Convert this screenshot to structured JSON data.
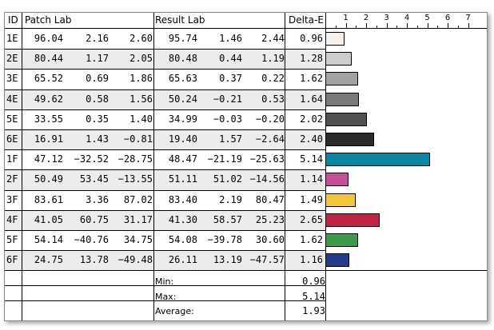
{
  "headers": {
    "id": "ID",
    "patch_lab": "Patch Lab",
    "result_lab": "Result Lab",
    "delta_e": "Delta-E"
  },
  "axis_ticks": [
    "1",
    "2",
    "3",
    "4",
    "5",
    "6",
    "7"
  ],
  "rows": [
    {
      "id": "1E",
      "pL": "96.04",
      "pa": "2.16",
      "pb": "2.60",
      "rL": "95.74",
      "ra": "1.46",
      "rb": "2.44",
      "de": "0.96",
      "color": "#f8f0ea"
    },
    {
      "id": "2E",
      "pL": "80.44",
      "pa": "1.17",
      "pb": "2.05",
      "rL": "80.48",
      "ra": "0.44",
      "rb": "1.19",
      "de": "1.28",
      "color": "#cdcdcd"
    },
    {
      "id": "3E",
      "pL": "65.52",
      "pa": "0.69",
      "pb": "1.86",
      "rL": "65.63",
      "ra": "0.37",
      "rb": "0.22",
      "de": "1.62",
      "color": "#a2a2a2"
    },
    {
      "id": "4E",
      "pL": "49.62",
      "pa": "0.58",
      "pb": "1.56",
      "rL": "50.24",
      "ra": "−0.21",
      "rb": "0.53",
      "de": "1.64",
      "color": "#7a7a7a"
    },
    {
      "id": "5E",
      "pL": "33.55",
      "pa": "0.35",
      "pb": "1.40",
      "rL": "34.99",
      "ra": "−0.03",
      "rb": "−0.20",
      "de": "2.02",
      "color": "#505050"
    },
    {
      "id": "6E",
      "pL": "16.91",
      "pa": "1.43",
      "pb": "−0.81",
      "rL": "19.40",
      "ra": "1.57",
      "rb": "−2.64",
      "de": "2.40",
      "color": "#2b2b2d"
    },
    {
      "id": "1F",
      "pL": "47.12",
      "pa": "−32.52",
      "pb": "−28.75",
      "rL": "48.47",
      "ra": "−21.19",
      "rb": "−25.63",
      "de": "5.14",
      "color": "#0a86a3"
    },
    {
      "id": "2F",
      "pL": "50.49",
      "pa": "53.45",
      "pb": "−13.55",
      "rL": "51.11",
      "ra": "51.02",
      "rb": "−14.56",
      "de": "1.14",
      "color": "#c64f96"
    },
    {
      "id": "3F",
      "pL": "83.61",
      "pa": "3.36",
      "pb": "87.02",
      "rL": "83.40",
      "ra": "2.19",
      "rb": "80.47",
      "de": "1.49",
      "color": "#f2c73a"
    },
    {
      "id": "4F",
      "pL": "41.05",
      "pa": "60.75",
      "pb": "31.17",
      "rL": "41.30",
      "ra": "58.57",
      "rb": "25.23",
      "de": "2.65",
      "color": "#c02444"
    },
    {
      "id": "5F",
      "pL": "54.14",
      "pa": "−40.76",
      "pb": "34.75",
      "rL": "54.08",
      "ra": "−39.78",
      "rb": "30.60",
      "de": "1.62",
      "color": "#3d9a4a"
    },
    {
      "id": "6F",
      "pL": "24.75",
      "pa": "13.78",
      "pb": "−49.48",
      "rL": "26.11",
      "ra": "13.19",
      "rb": "−47.57",
      "de": "1.16",
      "color": "#263a8c"
    }
  ],
  "summary": [
    {
      "label": "Min:",
      "value": "0.96"
    },
    {
      "label": "Max:",
      "value": "5.14"
    },
    {
      "label": "Average:",
      "value": "1.93"
    }
  ],
  "chart_data": {
    "type": "bar",
    "orientation": "horizontal",
    "categories": [
      "1E",
      "2E",
      "3E",
      "4E",
      "5E",
      "6E",
      "1F",
      "2F",
      "3F",
      "4F",
      "5F",
      "6F"
    ],
    "values": [
      0.96,
      1.28,
      1.62,
      1.64,
      2.02,
      2.4,
      5.14,
      1.14,
      1.49,
      2.65,
      1.62,
      1.16
    ],
    "xlabel": "",
    "ylabel": "",
    "xlim": [
      0,
      7.5
    ],
    "x_ticks": [
      1,
      2,
      3,
      4,
      5,
      6,
      7
    ],
    "grid": false
  }
}
